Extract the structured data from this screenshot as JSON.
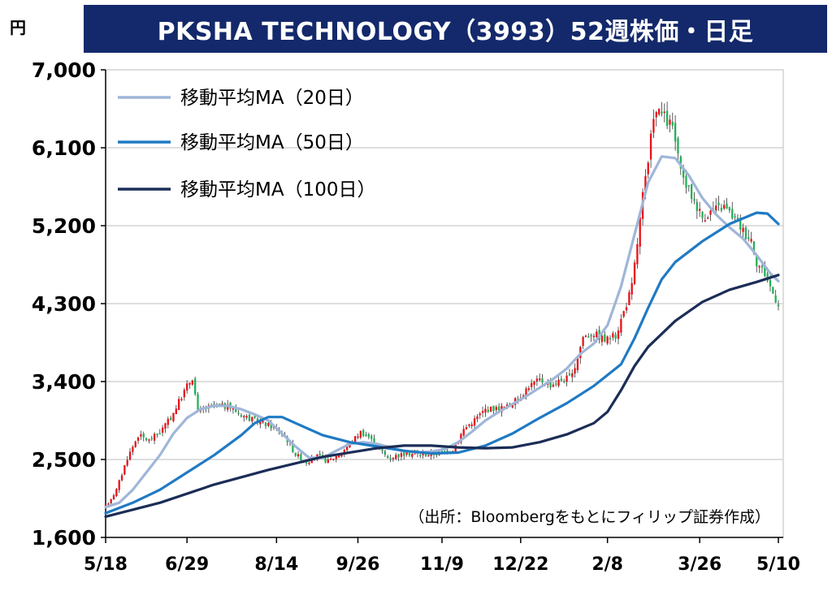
{
  "title": "PKSHA TECHNOLOGY（3993）52週株価・日足",
  "unit": "円",
  "source": "（出所：Bloombergをもとにフィリップ証券作成）",
  "colors": {
    "title_bg": "#13296b",
    "up": "#e8141b",
    "down": "#27b058",
    "ma20": "#9fb6d8",
    "ma50": "#1f7ac4",
    "ma100": "#1b2d57",
    "grid": "#d4d4d4"
  },
  "chart_data": {
    "type": "candlestick",
    "y_ticks": [
      "7,000",
      "6,100",
      "5,200",
      "4,300",
      "3,400",
      "2,500",
      "1,600"
    ],
    "y_tick_values": [
      7000,
      6100,
      5200,
      4300,
      3400,
      2500,
      1600
    ],
    "ylim": [
      1600,
      7000
    ],
    "x_ticks": [
      "5/18",
      "6/29",
      "8/14",
      "9/26",
      "11/9",
      "12/22",
      "2/8",
      "3/26",
      "5/10"
    ],
    "n_days": 249,
    "tick_days": [
      0,
      30,
      63,
      93,
      124,
      153,
      185,
      219,
      248
    ],
    "grid": true,
    "legend_position": "top-left",
    "series": [
      {
        "name": "移動平均MA（20日）",
        "color_key": "ma20",
        "points": [
          [
            0,
            1950
          ],
          [
            5,
            2000
          ],
          [
            10,
            2150
          ],
          [
            15,
            2350
          ],
          [
            20,
            2550
          ],
          [
            25,
            2800
          ],
          [
            30,
            2980
          ],
          [
            35,
            3080
          ],
          [
            40,
            3120
          ],
          [
            45,
            3120
          ],
          [
            50,
            3080
          ],
          [
            55,
            3020
          ],
          [
            60,
            2950
          ],
          [
            65,
            2800
          ],
          [
            70,
            2650
          ],
          [
            75,
            2520
          ],
          [
            80,
            2520
          ],
          [
            85,
            2600
          ],
          [
            90,
            2680
          ],
          [
            95,
            2700
          ],
          [
            100,
            2680
          ],
          [
            105,
            2640
          ],
          [
            110,
            2600
          ],
          [
            115,
            2580
          ],
          [
            120,
            2590
          ],
          [
            125,
            2620
          ],
          [
            130,
            2700
          ],
          [
            135,
            2820
          ],
          [
            140,
            2950
          ],
          [
            145,
            3050
          ],
          [
            150,
            3140
          ],
          [
            155,
            3230
          ],
          [
            160,
            3330
          ],
          [
            165,
            3430
          ],
          [
            170,
            3550
          ],
          [
            175,
            3720
          ],
          [
            180,
            3840
          ],
          [
            185,
            4050
          ],
          [
            190,
            4500
          ],
          [
            195,
            5100
          ],
          [
            200,
            5700
          ],
          [
            205,
            6000
          ],
          [
            210,
            5980
          ],
          [
            215,
            5780
          ],
          [
            220,
            5520
          ],
          [
            225,
            5330
          ],
          [
            230,
            5180
          ],
          [
            235,
            5050
          ],
          [
            240,
            4860
          ],
          [
            245,
            4650
          ],
          [
            248,
            4560
          ]
        ]
      },
      {
        "name": "移動平均MA（50日）",
        "color_key": "ma50",
        "points": [
          [
            0,
            1880
          ],
          [
            10,
            2000
          ],
          [
            20,
            2150
          ],
          [
            30,
            2350
          ],
          [
            40,
            2550
          ],
          [
            50,
            2780
          ],
          [
            55,
            2920
          ],
          [
            60,
            2990
          ],
          [
            65,
            2990
          ],
          [
            70,
            2920
          ],
          [
            80,
            2780
          ],
          [
            90,
            2700
          ],
          [
            100,
            2650
          ],
          [
            110,
            2600
          ],
          [
            120,
            2570
          ],
          [
            130,
            2580
          ],
          [
            140,
            2660
          ],
          [
            150,
            2800
          ],
          [
            160,
            2980
          ],
          [
            170,
            3150
          ],
          [
            180,
            3350
          ],
          [
            190,
            3600
          ],
          [
            195,
            3900
          ],
          [
            200,
            4250
          ],
          [
            205,
            4580
          ],
          [
            210,
            4780
          ],
          [
            220,
            5020
          ],
          [
            230,
            5220
          ],
          [
            240,
            5350
          ],
          [
            244,
            5340
          ],
          [
            248,
            5220
          ]
        ]
      },
      {
        "name": "移動平均MA（100日）",
        "color_key": "ma100",
        "points": [
          [
            0,
            1840
          ],
          [
            20,
            2000
          ],
          [
            40,
            2210
          ],
          [
            60,
            2380
          ],
          [
            80,
            2530
          ],
          [
            100,
            2630
          ],
          [
            110,
            2660
          ],
          [
            120,
            2660
          ],
          [
            130,
            2640
          ],
          [
            140,
            2630
          ],
          [
            150,
            2640
          ],
          [
            160,
            2700
          ],
          [
            170,
            2790
          ],
          [
            180,
            2920
          ],
          [
            185,
            3050
          ],
          [
            190,
            3300
          ],
          [
            195,
            3580
          ],
          [
            200,
            3800
          ],
          [
            210,
            4100
          ],
          [
            220,
            4320
          ],
          [
            230,
            4460
          ],
          [
            240,
            4550
          ],
          [
            248,
            4630
          ]
        ]
      }
    ]
  }
}
